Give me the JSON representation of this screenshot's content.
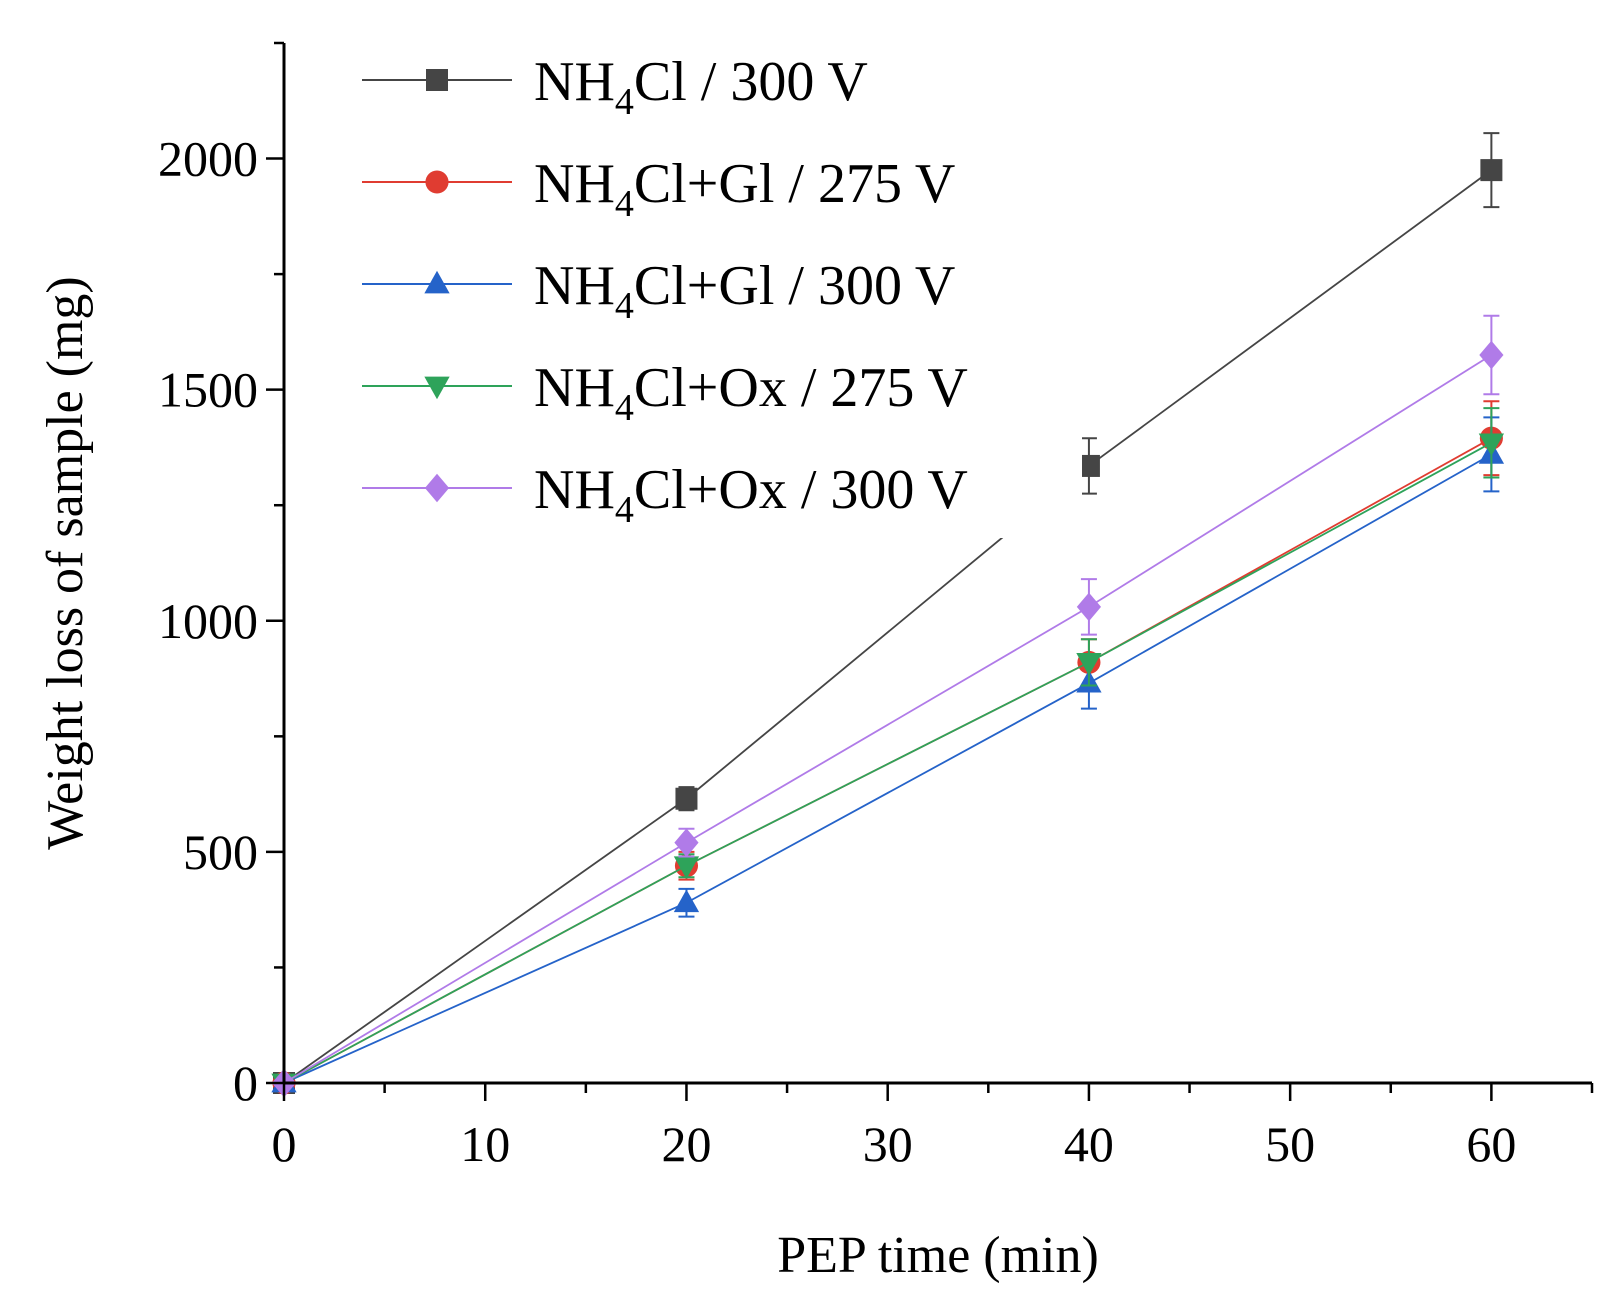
{
  "chart_data": {
    "type": "line",
    "title": "",
    "xlabel": "PEP time (min)",
    "ylabel": "Weight loss of sample (mg)",
    "xlim": [
      0,
      65
    ],
    "ylim": [
      0,
      2250
    ],
    "x_ticks": [
      0,
      10,
      20,
      30,
      40,
      50,
      60
    ],
    "y_ticks": [
      0,
      500,
      1000,
      1500,
      2000
    ],
    "legend_position": "top-left",
    "series": [
      {
        "name": "NH4Cl / 300 V",
        "legend_parts": [
          "NH",
          "4",
          "Cl / 300 V"
        ],
        "color": "#454545",
        "marker": "square",
        "x": [
          0,
          20,
          40,
          60
        ],
        "y": [
          0,
          615,
          1335,
          1975
        ],
        "err": [
          0,
          25,
          60,
          80
        ]
      },
      {
        "name": "NH4Cl+Gl / 275 V",
        "legend_parts": [
          "NH",
          "4",
          "Cl+Gl / 275 V"
        ],
        "color": "#e03c31",
        "marker": "circle",
        "x": [
          0,
          20,
          40,
          60
        ],
        "y": [
          0,
          470,
          910,
          1395
        ],
        "err": [
          0,
          30,
          50,
          80
        ]
      },
      {
        "name": "NH4Cl+Gl / 300 V",
        "legend_parts": [
          "NH",
          "4",
          "Cl+Gl / 300 V"
        ],
        "color": "#2563c9",
        "marker": "triangle-up",
        "x": [
          0,
          20,
          40,
          60
        ],
        "y": [
          0,
          390,
          865,
          1360
        ],
        "err": [
          0,
          30,
          55,
          80
        ]
      },
      {
        "name": "NH4Cl+Ox / 275 V",
        "legend_parts": [
          "NH",
          "4",
          "Cl+Ox / 275 V"
        ],
        "color": "#2ea35a",
        "marker": "triangle-down",
        "x": [
          0,
          20,
          40,
          60
        ],
        "y": [
          0,
          470,
          910,
          1385
        ],
        "err": [
          0,
          25,
          50,
          75
        ]
      },
      {
        "name": "NH4Cl+Ox / 300 V",
        "legend_parts": [
          "NH",
          "4",
          "Cl+Ox / 300 V"
        ],
        "color": "#b07be8",
        "marker": "diamond",
        "x": [
          0,
          20,
          40,
          60
        ],
        "y": [
          0,
          520,
          1030,
          1575
        ],
        "err": [
          0,
          30,
          60,
          85
        ]
      }
    ]
  }
}
